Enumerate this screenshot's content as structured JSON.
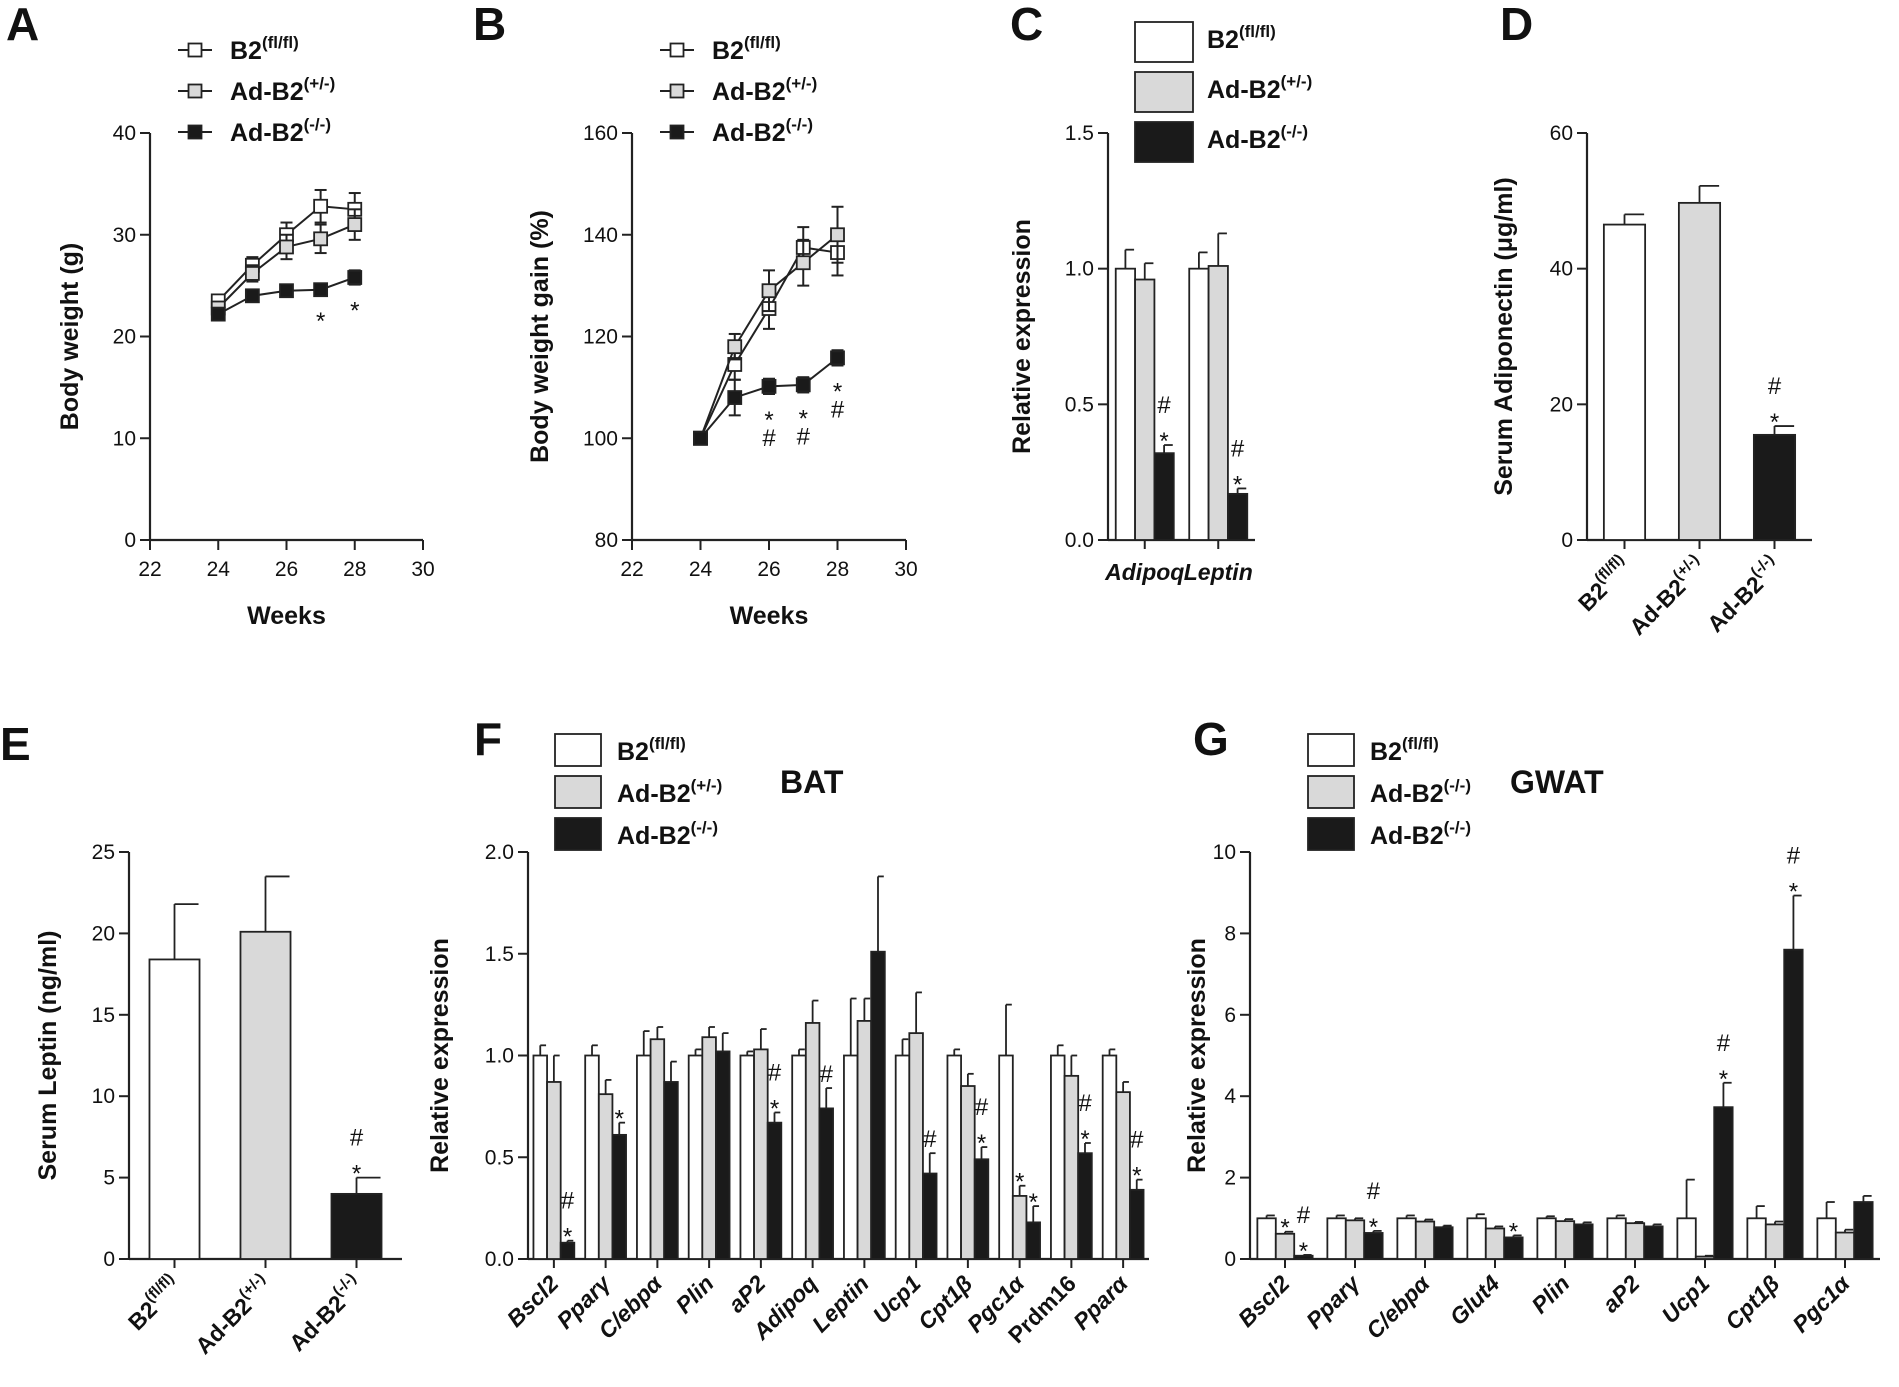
{
  "figure_labels": [
    "A",
    "B",
    "C",
    "D",
    "E",
    "F",
    "G"
  ],
  "colors": {
    "wt": "#ffffff",
    "het": "#d9d9d9",
    "ko": "#1a1a1a",
    "axis": "#222222"
  },
  "chart_data": [
    {
      "id": "A",
      "type": "line",
      "xlabel": "Weeks",
      "ylabel": "Body weight (g)",
      "xlim": [
        22,
        30
      ],
      "ylim": [
        0,
        40
      ],
      "xticks": [
        "22",
        "24",
        "26",
        "28",
        "30"
      ],
      "yticks": [
        "0",
        "10",
        "20",
        "30",
        "40"
      ],
      "x": [
        24,
        25,
        26,
        27,
        28
      ],
      "series": [
        {
          "name": "B2",
          "sup": "(fl/fl)",
          "marker": "open",
          "values": [
            23.5,
            27,
            30,
            32.8,
            32.5
          ],
          "err": [
            0.6,
            0.8,
            1.2,
            1.6,
            1.6
          ]
        },
        {
          "name": "Ad-B2",
          "sup": "(+/-)",
          "marker": "gray",
          "values": [
            22.8,
            26.2,
            28.8,
            29.6,
            31
          ],
          "err": [
            0.5,
            0.8,
            1.2,
            1.4,
            1.5
          ]
        },
        {
          "name": "Ad-B2",
          "sup": "(-/-)",
          "marker": "filled",
          "values": [
            22.2,
            24,
            24.5,
            24.6,
            25.8
          ],
          "err": [
            0.5,
            0.4,
            0.6,
            0.5,
            0.7
          ]
        }
      ],
      "annotations": [
        {
          "x": 27,
          "text": "*"
        },
        {
          "x": 28,
          "text": "*"
        }
      ]
    },
    {
      "id": "B",
      "type": "line",
      "xlabel": "Weeks",
      "ylabel": "Body weight gain (%)",
      "xlim": [
        22,
        30
      ],
      "ylim": [
        80,
        160
      ],
      "xticks": [
        "22",
        "24",
        "26",
        "28",
        "30"
      ],
      "yticks": [
        "80",
        "100",
        "120",
        "140",
        "160"
      ],
      "x": [
        24,
        25,
        26,
        27,
        28
      ],
      "series": [
        {
          "name": "B2",
          "sup": "(fl/fl)",
          "marker": "open",
          "values": [
            100,
            114.5,
            125.5,
            137.5,
            136.5
          ],
          "err": [
            0,
            3,
            4,
            4,
            4.5
          ]
        },
        {
          "name": "Ad-B2",
          "sup": "(+/-)",
          "marker": "gray",
          "values": [
            100,
            118,
            129,
            134.5,
            140
          ],
          "err": [
            0,
            2.5,
            4,
            4.5,
            5.5
          ]
        },
        {
          "name": "Ad-B2",
          "sup": "(-/-)",
          "marker": "filled",
          "values": [
            100,
            108,
            110.2,
            110.5,
            115.8
          ],
          "err": [
            0,
            3.5,
            1.5,
            1.5,
            1.5
          ]
        }
      ],
      "annotations": [
        {
          "x": 26,
          "text": "* #"
        },
        {
          "x": 27,
          "text": "* #"
        },
        {
          "x": 28,
          "text": "* #"
        }
      ]
    },
    {
      "id": "C",
      "type": "bar",
      "ylabel": "Relative expression",
      "ylim": [
        0,
        1.5
      ],
      "yticks": [
        "0.0",
        "0.5",
        "1.0",
        "1.5"
      ],
      "categories": [
        "Adipoq",
        "Leptin"
      ],
      "series": [
        {
          "name": "B2",
          "sup": "(fl/fl)",
          "values": [
            1.0,
            1.0
          ],
          "err": [
            0.07,
            0.06
          ]
        },
        {
          "name": "Ad-B2",
          "sup": "(+/-)",
          "values": [
            0.96,
            1.01
          ],
          "err": [
            0.06,
            0.12
          ]
        },
        {
          "name": "Ad-B2",
          "sup": "(-/-)",
          "values": [
            0.32,
            0.17
          ],
          "err": [
            0.03,
            0.02
          ]
        }
      ],
      "annotations": [
        {
          "category": "Adipoq",
          "text": "# *"
        },
        {
          "category": "Leptin",
          "text": "# *"
        }
      ]
    },
    {
      "id": "D",
      "type": "bar",
      "ylabel": "Serum Adiponectin (μg/ml)",
      "ylim": [
        0,
        60
      ],
      "yticks": [
        "0",
        "20",
        "40",
        "60"
      ],
      "categories": [
        {
          "name": "B2",
          "sup": "(fl/fl)"
        },
        {
          "name": "Ad-B2",
          "sup": "(+/-)"
        },
        {
          "name": "Ad-B2",
          "sup": "(-/-)"
        }
      ],
      "values": [
        46.5,
        49.7,
        15.5
      ],
      "err": [
        1.5,
        2.5,
        1.3
      ],
      "annotations": [
        {
          "index": 2,
          "text": "# *"
        }
      ]
    },
    {
      "id": "E",
      "type": "bar",
      "ylabel": "Serum Leptin (ng/ml)",
      "ylim": [
        0,
        25
      ],
      "yticks": [
        "0",
        "5",
        "10",
        "15",
        "20",
        "25"
      ],
      "categories": [
        {
          "name": "B2",
          "sup": "(fl/fl)"
        },
        {
          "name": "Ad-B2",
          "sup": "(+/-)"
        },
        {
          "name": "Ad-B2",
          "sup": "(-/-)"
        }
      ],
      "values": [
        18.4,
        20.1,
        4.0
      ],
      "err": [
        3.4,
        3.4,
        1.0
      ],
      "annotations": [
        {
          "index": 2,
          "text": "# *"
        }
      ]
    },
    {
      "id": "F",
      "type": "bar",
      "title": "BAT",
      "ylabel": "Relative expression",
      "ylim": [
        0,
        2.0
      ],
      "yticks": [
        "0.0",
        "0.5",
        "1.0",
        "1.5",
        "2.0"
      ],
      "categories": [
        "Bscl2",
        "Pparγ",
        "C/ebpα",
        "Plin",
        "aP2",
        "Adipoq",
        "Leptin",
        "Ucp1",
        "Cpt1β",
        "Pgc1α",
        "Prdm16",
        "Pparα"
      ],
      "italic": [
        true,
        true,
        true,
        true,
        true,
        true,
        true,
        true,
        true,
        true,
        false,
        true
      ],
      "series": [
        {
          "name": "B2",
          "sup": "(fl/fl)",
          "values": [
            1.0,
            1.0,
            1.0,
            1.0,
            1.0,
            1.0,
            1.0,
            1.0,
            1.0,
            1.0,
            1.0,
            1.0
          ],
          "err": [
            0.05,
            0.05,
            0.12,
            0.03,
            0.02,
            0.03,
            0.28,
            0.08,
            0.03,
            0.25,
            0.05,
            0.03
          ]
        },
        {
          "name": "Ad-B2",
          "sup": "(+/-)",
          "values": [
            0.87,
            0.81,
            1.08,
            1.09,
            1.03,
            1.16,
            1.17,
            1.11,
            0.85,
            0.31,
            0.9,
            0.82
          ],
          "err": [
            0.13,
            0.07,
            0.06,
            0.05,
            0.1,
            0.11,
            0.11,
            0.2,
            0.06,
            0.05,
            0.1,
            0.05
          ]
        },
        {
          "name": "Ad-B2",
          "sup": "(-/-)",
          "values": [
            0.08,
            0.61,
            0.87,
            1.02,
            0.67,
            0.74,
            1.51,
            0.42,
            0.49,
            0.18,
            0.52,
            0.34
          ],
          "err": [
            0.01,
            0.06,
            0.1,
            0.09,
            0.05,
            0.1,
            0.37,
            0.1,
            0.06,
            0.08,
            0.05,
            0.05
          ]
        }
      ],
      "annotations": [
        {
          "index": 0,
          "series": 2,
          "text": "# *"
        },
        {
          "index": 1,
          "series": 2,
          "text": "*"
        },
        {
          "index": 4,
          "series": 2,
          "text": "# *"
        },
        {
          "index": 5,
          "series": 2,
          "text": "#"
        },
        {
          "index": 7,
          "series": 2,
          "text": "#"
        },
        {
          "index": 8,
          "series": 2,
          "text": "# *"
        },
        {
          "index": 9,
          "series": 1,
          "text": "*"
        },
        {
          "index": 9,
          "series": 2,
          "text": "*"
        },
        {
          "index": 10,
          "series": 2,
          "text": "# *"
        },
        {
          "index": 11,
          "series": 2,
          "text": "# *"
        }
      ]
    },
    {
      "id": "G",
      "type": "bar",
      "title": "GWAT",
      "ylabel": "Relative expression",
      "ylim": [
        0,
        10
      ],
      "yticks": [
        "0",
        "2",
        "4",
        "6",
        "8",
        "10"
      ],
      "categories": [
        "Bscl2",
        "Pparγ",
        "C/ebpα",
        "Glut4",
        "Plin",
        "aP2",
        "Ucp1",
        "Cpt1β",
        "Pgc1α"
      ],
      "italic": [
        true,
        true,
        true,
        true,
        true,
        true,
        true,
        true,
        true
      ],
      "series": [
        {
          "name": "B2",
          "sup": "(fl/fl)",
          "values": [
            1.0,
            1.0,
            1.0,
            1.0,
            1.0,
            1.0,
            1.0,
            1.0,
            1.0
          ],
          "err": [
            0.07,
            0.07,
            0.07,
            0.1,
            0.05,
            0.07,
            0.95,
            0.3,
            0.4
          ]
        },
        {
          "name": "Ad-B2",
          "sup": "(-/-)",
          "values": [
            0.62,
            0.95,
            0.92,
            0.75,
            0.93,
            0.88,
            0.06,
            0.85,
            0.65
          ],
          "err": [
            0.05,
            0.05,
            0.05,
            0.05,
            0.05,
            0.03,
            0.02,
            0.07,
            0.07
          ]
        },
        {
          "name": "Ad-B2",
          "sup": "(-/-)",
          "values": [
            0.08,
            0.64,
            0.78,
            0.53,
            0.85,
            0.8,
            3.73,
            7.6,
            1.4
          ],
          "err": [
            0.02,
            0.05,
            0.04,
            0.05,
            0.05,
            0.05,
            0.6,
            1.33,
            0.15
          ]
        }
      ],
      "annotations": [
        {
          "index": 0,
          "series": 1,
          "text": "*"
        },
        {
          "index": 0,
          "series": 2,
          "text": "# *"
        },
        {
          "index": 1,
          "series": 2,
          "text": "# *"
        },
        {
          "index": 3,
          "series": 2,
          "text": "*"
        },
        {
          "index": 6,
          "series": 2,
          "text": "# *"
        },
        {
          "index": 7,
          "series": 2,
          "text": "# *"
        }
      ]
    }
  ]
}
